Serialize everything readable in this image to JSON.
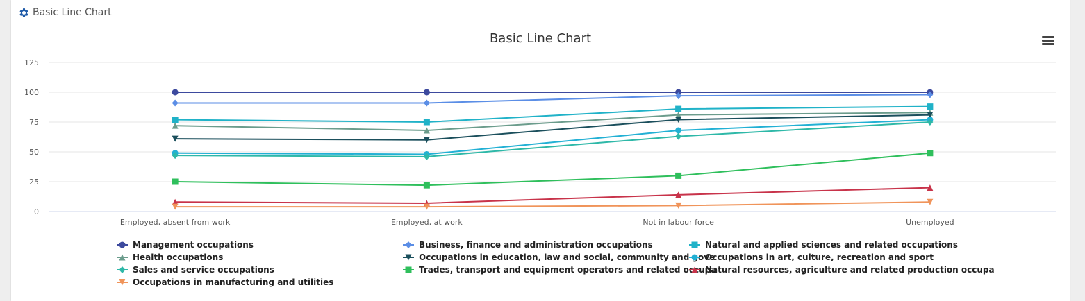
{
  "panel": {
    "header_title": "Basic Line Chart",
    "header_icon": "gear-icon",
    "accent_color": "#1e5aa8",
    "menu_icon": "hamburger-menu-icon"
  },
  "chart_data": {
    "type": "line",
    "title": "Basic Line Chart",
    "xlabel": "",
    "ylabel": "",
    "categories": [
      "Employed, absent from work",
      "Employed, at work",
      "Not in labour force",
      "Unemployed"
    ],
    "ylim": [
      0,
      125
    ],
    "yticks": [
      0,
      25,
      50,
      75,
      100,
      125
    ],
    "grid": true,
    "legend_position": "bottom",
    "series": [
      {
        "name": "Management occupations",
        "values": [
          100,
          100,
          100,
          100
        ],
        "color": "#3d4a9e",
        "marker": "circle"
      },
      {
        "name": "Business, finance and administration occupations",
        "values": [
          91,
          91,
          97,
          98
        ],
        "color": "#5b8ee6",
        "marker": "diamond"
      },
      {
        "name": "Natural and applied sciences and related occupations",
        "values": [
          77,
          75,
          86,
          88
        ],
        "color": "#20b2c8",
        "marker": "square"
      },
      {
        "name": "Health occupations",
        "values": [
          72,
          68,
          81,
          83
        ],
        "color": "#6b9c8c",
        "marker": "triangle-up"
      },
      {
        "name": "Occupations in education, law and social, community and gove",
        "values": [
          61,
          60,
          77,
          81
        ],
        "color": "#1b4f5c",
        "marker": "triangle-down"
      },
      {
        "name": "Occupations in art, culture, recreation and sport",
        "values": [
          49,
          48,
          68,
          77
        ],
        "color": "#22b0d4",
        "marker": "circle"
      },
      {
        "name": "Sales and service occupations",
        "values": [
          47,
          46,
          63,
          75
        ],
        "color": "#2eb8a8",
        "marker": "diamond"
      },
      {
        "name": "Trades, transport and equipment operators and related occupa",
        "values": [
          25,
          22,
          30,
          49
        ],
        "color": "#2fbf5c",
        "marker": "square"
      },
      {
        "name": "Natural resources, agriculture and related production occupa",
        "values": [
          8,
          7,
          14,
          20
        ],
        "color": "#c8334a",
        "marker": "triangle-up"
      },
      {
        "name": "Occupations in manufacturing and utilities",
        "values": [
          4,
          4,
          5,
          8
        ],
        "color": "#f0945a",
        "marker": "triangle-down"
      }
    ]
  }
}
